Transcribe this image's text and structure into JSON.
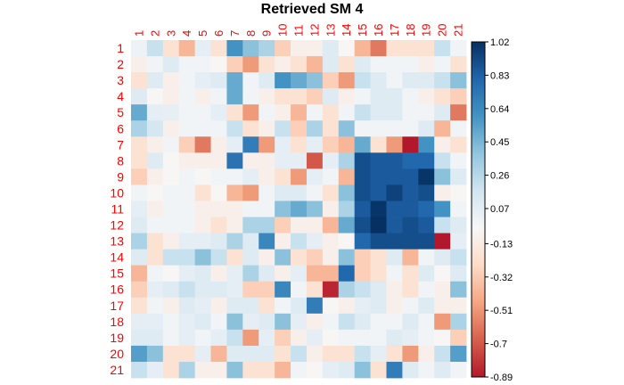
{
  "chart_data": {
    "type": "heatmap",
    "title": "Retrieved SM  4",
    "row_labels": [
      "1",
      "2",
      "3",
      "4",
      "5",
      "6",
      "7",
      "8",
      "9",
      "10",
      "11",
      "12",
      "13",
      "14",
      "15",
      "16",
      "17",
      "18",
      "19",
      "20",
      "21"
    ],
    "col_labels": [
      "1",
      "2",
      "3",
      "4",
      "5",
      "6",
      "7",
      "8",
      "9",
      "10",
      "11",
      "12",
      "13",
      "14",
      "15",
      "16",
      "17",
      "18",
      "19",
      "20",
      "21"
    ],
    "colorbar": {
      "min": -0.89,
      "max": 1.02,
      "ticks": [
        1.02,
        0.83,
        0.64,
        0.45,
        0.26,
        0.07,
        -0.13,
        -0.32,
        -0.51,
        -0.7,
        -0.89
      ],
      "palette": [
        "#b2182b",
        "#d6604d",
        "#f4a582",
        "#fddbc7",
        "#f7f7f7",
        "#d1e5f0",
        "#92c5de",
        "#4393c3",
        "#2166ac",
        "#053061"
      ]
    },
    "values": [
      [
        0.02,
        0.2,
        -0.2,
        -0.4,
        0.06,
        -0.2,
        0.6,
        0.4,
        0.3,
        -0.3,
        -0.1,
        -0.1,
        0.1,
        -0.05,
        -0.4,
        -0.6,
        -0.2,
        -0.2,
        -0.2,
        0.2,
        0.0
      ],
      [
        -0.1,
        0.0,
        0.1,
        0.0,
        0.0,
        -0.05,
        -0.3,
        -0.5,
        -0.2,
        -0.1,
        -0.2,
        -0.4,
        0.1,
        -0.2,
        0.1,
        0.0,
        0.0,
        0.0,
        -0.1,
        0.0,
        -0.2
      ],
      [
        -0.2,
        0.1,
        -0.1,
        0.0,
        0.06,
        0.1,
        0.5,
        0.0,
        0.1,
        0.6,
        0.5,
        0.4,
        -0.3,
        -0.5,
        0.2,
        0.1,
        0.0,
        0.1,
        0.1,
        0.2,
        0.4
      ],
      [
        0.1,
        -0.05,
        -0.1,
        0.0,
        -0.1,
        0.0,
        0.5,
        0.0,
        -0.1,
        -0.2,
        -0.2,
        -0.3,
        0.1,
        -0.1,
        0.0,
        0.1,
        0.1,
        0.0,
        -0.1,
        -0.2,
        -0.3
      ],
      [
        0.5,
        0.06,
        0.05,
        0.0,
        0.0,
        0.06,
        -0.2,
        -0.5,
        0.0,
        -0.1,
        -0.4,
        0.0,
        -0.2,
        0.0,
        0.2,
        0.1,
        0.1,
        0.0,
        0.0,
        0.1,
        -0.6
      ],
      [
        0.3,
        0.15,
        -0.1,
        0.0,
        0.0,
        0.0,
        0.2,
        -0.2,
        -0.1,
        0.2,
        -0.3,
        0.3,
        -0.2,
        0.4,
        0.0,
        0.0,
        0.0,
        0.0,
        0.1,
        -0.4,
        0.0
      ],
      [
        -0.2,
        -0.1,
        0.0,
        -0.3,
        -0.6,
        -0.1,
        0.06,
        0.7,
        -0.5,
        0.06,
        -0.2,
        0.06,
        -0.3,
        -0.4,
        0.5,
        -0.2,
        -0.5,
        -0.89,
        0.6,
        -0.1,
        -0.2
      ],
      [
        -0.2,
        0.1,
        -0.05,
        -0.1,
        -0.1,
        -0.1,
        0.75,
        -0.1,
        -0.1,
        0.06,
        0.06,
        -0.7,
        0.06,
        0.3,
        0.9,
        0.85,
        0.85,
        0.8,
        0.8,
        0.2,
        0.0
      ],
      [
        -0.3,
        -0.1,
        -0.05,
        0.0,
        -0.05,
        0.0,
        0.0,
        0.06,
        -0.1,
        -0.2,
        -0.5,
        0.06,
        0.0,
        -0.4,
        0.9,
        0.85,
        0.85,
        0.85,
        1.0,
        0.4,
        0.1
      ],
      [
        0.0,
        -0.05,
        0.0,
        0.0,
        -0.2,
        -0.05,
        -0.4,
        -0.5,
        0.0,
        0.1,
        0.1,
        0.0,
        -0.2,
        0.4,
        0.9,
        0.85,
        0.95,
        0.85,
        0.9,
        -0.1,
        -0.05
      ],
      [
        0.06,
        -0.1,
        0.0,
        0.0,
        -0.1,
        -0.1,
        -0.1,
        0.0,
        0.0,
        0.4,
        0.5,
        0.4,
        -0.1,
        0.3,
        0.85,
        1.0,
        0.85,
        0.85,
        0.8,
        0.6,
        0.0
      ],
      [
        0.1,
        0.0,
        0.0,
        0.0,
        -0.1,
        -0.2,
        -0.1,
        0.3,
        0.3,
        -0.3,
        -0.1,
        -0.1,
        -0.4,
        0.5,
        0.9,
        1.02,
        0.85,
        0.9,
        0.85,
        0.2,
        0.1
      ],
      [
        0.3,
        -0.2,
        -0.1,
        0.06,
        0.06,
        0.1,
        0.3,
        0.1,
        0.65,
        -0.1,
        0.2,
        0.06,
        -0.1,
        -0.05,
        0.8,
        0.9,
        0.9,
        0.9,
        0.9,
        -0.89,
        0.06
      ],
      [
        0.1,
        -0.2,
        0.2,
        0.2,
        0.4,
        0.2,
        -0.2,
        0.1,
        -0.1,
        0.4,
        -0.2,
        -0.3,
        -0.1,
        0.4,
        -0.3,
        -0.2,
        0.1,
        -0.4,
        0.0,
        0.1,
        0.2
      ],
      [
        -0.4,
        0.0,
        -0.05,
        0.06,
        0.1,
        -0.1,
        0.06,
        0.3,
        0.1,
        -0.1,
        0.06,
        -0.4,
        -0.4,
        0.8,
        -0.3,
        -0.2,
        0.0,
        -0.2,
        0.1,
        -0.05,
        0.1
      ],
      [
        -0.3,
        0.06,
        0.1,
        0.2,
        0.1,
        0.1,
        0.06,
        -0.3,
        -0.3,
        0.65,
        0.0,
        -0.2,
        -0.85,
        0.3,
        0.2,
        0.1,
        -0.1,
        -0.2,
        0.0,
        -0.1,
        0.4
      ],
      [
        -0.2,
        0.0,
        -0.1,
        0.1,
        0.06,
        -0.1,
        0.1,
        0.1,
        -0.2,
        0.0,
        0.1,
        0.7,
        -0.05,
        -0.1,
        0.06,
        0.1,
        -0.1,
        0.0,
        0.1,
        -0.1,
        -0.1
      ],
      [
        0.06,
        0.06,
        0.0,
        0.06,
        0.1,
        0.0,
        0.4,
        0.06,
        0.1,
        0.4,
        0.06,
        -0.1,
        0.0,
        0.2,
        0.1,
        0.0,
        0.0,
        0.1,
        0.0,
        -0.5,
        0.3
      ],
      [
        0.1,
        0.1,
        0.0,
        0.06,
        0.0,
        0.06,
        0.2,
        -0.5,
        0.06,
        -0.3,
        -0.1,
        0.06,
        -0.05,
        0.0,
        0.0,
        0.0,
        0.1,
        0.06,
        0.0,
        -0.05,
        -0.3
      ],
      [
        0.55,
        0.4,
        -0.2,
        -0.2,
        0.06,
        -0.4,
        0.1,
        0.1,
        0.1,
        -0.2,
        0.2,
        -0.1,
        -0.2,
        -0.2,
        0.2,
        0.06,
        -0.2,
        -0.5,
        -0.1,
        0.2,
        0.55
      ],
      [
        0.2,
        0.06,
        -0.2,
        0.3,
        -0.1,
        -0.1,
        0.4,
        -0.2,
        -0.2,
        -0.4,
        0.0,
        -0.05,
        0.06,
        0.1,
        0.4,
        -0.2,
        0.7,
        0.1,
        0.0,
        0.1,
        0.0
      ]
    ]
  }
}
